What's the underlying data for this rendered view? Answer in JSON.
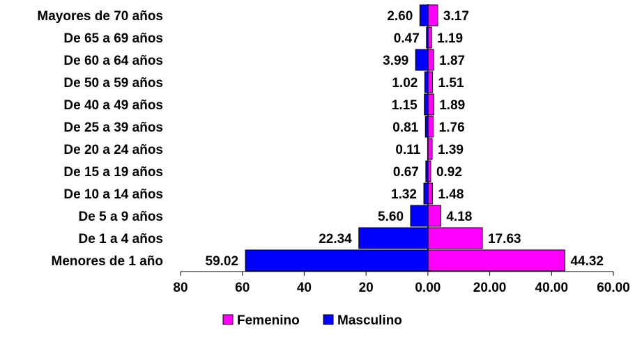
{
  "chart_data": {
    "type": "bar",
    "orientation": "horizontal-diverging",
    "categories": [
      "Menores de 1 año",
      "De 1 a 4 años",
      "De 5 a 9 años",
      "De 10 a 14 años",
      "De 15 a 19 años",
      "De 20 a 24 años",
      "De 25 a 39 años",
      "De 40 a 49 años",
      "De 50 a 59 años",
      "De 60 a 64 años",
      "De 65 a 69 años",
      "Mayores de 70 años"
    ],
    "series": [
      {
        "name": "Masculino",
        "color": "#0000ff",
        "side": "left",
        "values": [
          59.02,
          22.34,
          5.6,
          1.32,
          0.67,
          0.11,
          0.81,
          1.15,
          1.02,
          3.99,
          0.47,
          2.6
        ],
        "value_labels": [
          "59.02",
          "22.34",
          "5.60",
          "1.32",
          "0.67",
          "0.11",
          "0.81",
          "1.15",
          "1.02",
          "3.99",
          "0.47",
          "2.60"
        ]
      },
      {
        "name": "Femenino",
        "color": "#ff00ff",
        "side": "right",
        "values": [
          44.32,
          17.63,
          4.18,
          1.48,
          0.92,
          1.39,
          1.76,
          1.89,
          1.51,
          1.87,
          1.19,
          3.17
        ],
        "value_labels": [
          "44.32",
          "17.63",
          "4.18",
          "1.48",
          "0.92",
          "1.39",
          "1.76",
          "1.89",
          "1.51",
          "1.87",
          "1.19",
          "3.17"
        ]
      }
    ],
    "xlim": [
      -80,
      60
    ],
    "x_ticks": [
      {
        "value": -80,
        "label": "80"
      },
      {
        "value": -60,
        "label": "60"
      },
      {
        "value": -40,
        "label": "40"
      },
      {
        "value": -20,
        "label": "20"
      },
      {
        "value": 0,
        "label": "0.00"
      },
      {
        "value": 20,
        "label": "20.00"
      },
      {
        "value": 40,
        "label": "40.00"
      },
      {
        "value": 60,
        "label": "60.00"
      }
    ],
    "grid": false,
    "legend_position": "bottom-center",
    "legend": [
      {
        "name": "Femenino",
        "color": "#ff00ff"
      },
      {
        "name": "Masculino",
        "color": "#0000ff"
      }
    ]
  }
}
